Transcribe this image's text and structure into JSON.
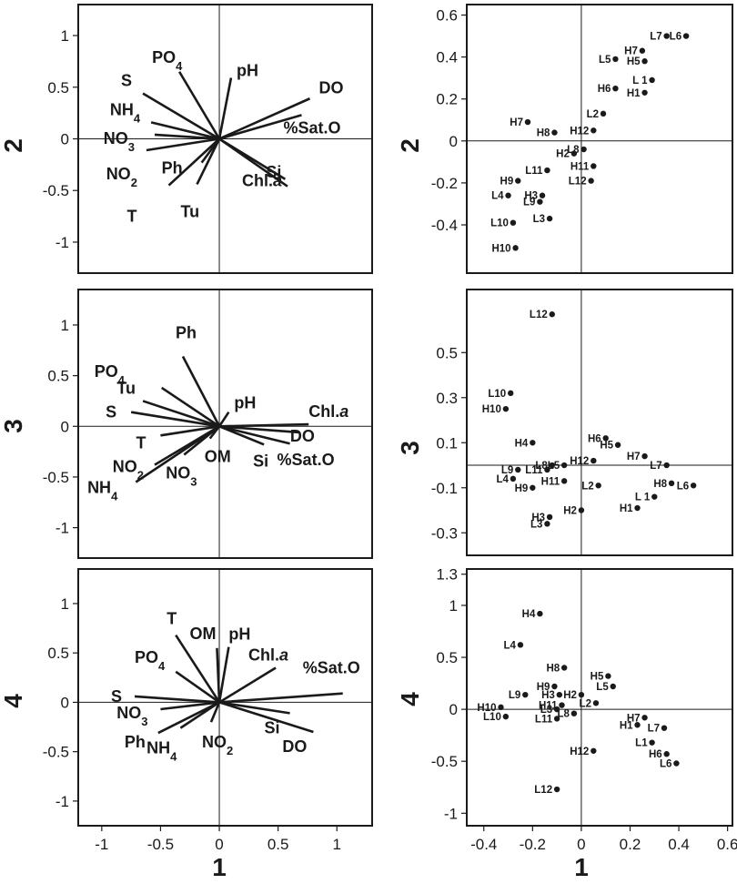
{
  "chart_data": [
    {
      "type": "biplot-loadings",
      "x_axis": "1",
      "y_axis": "2",
      "xlim": [
        -1.2,
        1.3
      ],
      "ylim": [
        -1.3,
        1.3
      ],
      "xticks": [],
      "yticks": [
        1,
        0.5,
        0,
        -0.5,
        -1
      ],
      "ytick_labels": [
        "1",
        "0.5",
        "0",
        "-0.5",
        "-1"
      ],
      "vectors": [
        {
          "label": "PO4",
          "x": -0.34,
          "y": 0.65
        },
        {
          "label": "pH",
          "x": 0.1,
          "y": 0.59
        },
        {
          "label": "DO",
          "x": 0.77,
          "y": 0.39
        },
        {
          "label": "%Sat.O",
          "x": 0.7,
          "y": 0.23
        },
        {
          "label": "S",
          "x": -0.65,
          "y": 0.44
        },
        {
          "label": "NH4",
          "x": -0.58,
          "y": 0.16
        },
        {
          "label": "NO3",
          "x": -0.55,
          "y": 0.04
        },
        {
          "label": "NO2",
          "x": -0.62,
          "y": -0.11
        },
        {
          "label": "Ph",
          "x": -0.15,
          "y": -0.23
        },
        {
          "label": "T",
          "x": -0.43,
          "y": -0.45
        },
        {
          "label": "Tu",
          "x": -0.19,
          "y": -0.44
        },
        {
          "label": "Si",
          "x": 0.56,
          "y": -0.39
        },
        {
          "label": "Chl.a",
          "x": 0.58,
          "y": -0.46
        }
      ]
    },
    {
      "type": "scatter",
      "x_axis": "1",
      "y_axis": "2",
      "xlim": [
        -0.47,
        0.62
      ],
      "ylim": [
        -0.63,
        0.65
      ],
      "xticks": [],
      "yticks": [
        0.6,
        0.4,
        0.2,
        0,
        -0.2,
        -0.4
      ],
      "ytick_labels": [
        "0.6",
        "0.4",
        "0.2",
        "0",
        "-0.2",
        "-0.4"
      ],
      "points": [
        {
          "label": "L7",
          "x": 0.35,
          "y": 0.5
        },
        {
          "label": "L6",
          "x": 0.43,
          "y": 0.5
        },
        {
          "label": "H7",
          "x": 0.25,
          "y": 0.43
        },
        {
          "label": "L5",
          "x": 0.14,
          "y": 0.39
        },
        {
          "label": "H5",
          "x": 0.26,
          "y": 0.38
        },
        {
          "label": "L 1",
          "x": 0.29,
          "y": 0.29
        },
        {
          "label": "H6",
          "x": 0.14,
          "y": 0.25
        },
        {
          "label": "H1",
          "x": 0.26,
          "y": 0.23
        },
        {
          "label": "L2",
          "x": 0.09,
          "y": 0.13
        },
        {
          "label": "H7",
          "x": -0.22,
          "y": 0.09
        },
        {
          "label": "H8",
          "x": -0.11,
          "y": 0.04
        },
        {
          "label": "H12",
          "x": 0.05,
          "y": 0.05
        },
        {
          "label": "L8",
          "x": 0.01,
          "y": -0.04
        },
        {
          "label": "H2",
          "x": -0.03,
          "y": -0.06
        },
        {
          "label": "H11",
          "x": 0.05,
          "y": -0.12
        },
        {
          "label": "L11",
          "x": -0.14,
          "y": -0.14
        },
        {
          "label": "L12",
          "x": 0.04,
          "y": -0.19
        },
        {
          "label": "H9",
          "x": -0.26,
          "y": -0.19
        },
        {
          "label": "L4",
          "x": -0.3,
          "y": -0.26
        },
        {
          "label": "H3",
          "x": -0.16,
          "y": -0.26
        },
        {
          "label": "L9",
          "x": -0.17,
          "y": -0.29
        },
        {
          "label": "L10",
          "x": -0.28,
          "y": -0.39
        },
        {
          "label": "L3",
          "x": -0.13,
          "y": -0.37
        },
        {
          "label": "H10",
          "x": -0.27,
          "y": -0.51
        }
      ]
    },
    {
      "type": "biplot-loadings",
      "x_axis": "1",
      "y_axis": "3",
      "xlim": [
        -1.2,
        1.3
      ],
      "ylim": [
        -1.3,
        1.35
      ],
      "xticks": [],
      "yticks": [
        1,
        0.5,
        0,
        -0.5,
        -1
      ],
      "ytick_labels": [
        "1",
        "0.5",
        "0",
        "-0.5",
        "-1"
      ],
      "vectors": [
        {
          "label": "PO4",
          "x": -0.49,
          "y": 0.38
        },
        {
          "label": "Ph",
          "x": -0.31,
          "y": 0.69
        },
        {
          "label": "Tu",
          "x": -0.65,
          "y": 0.25
        },
        {
          "label": "S",
          "x": -0.75,
          "y": 0.14
        },
        {
          "label": "pH",
          "x": 0.08,
          "y": 0.14
        },
        {
          "label": "Chl.a",
          "x": 0.76,
          "y": 0.02
        },
        {
          "label": "DO",
          "x": 0.68,
          "y": -0.06
        },
        {
          "label": "%Sat.O",
          "x": 0.6,
          "y": -0.17
        },
        {
          "label": "T",
          "x": -0.5,
          "y": -0.09
        },
        {
          "label": "NO2",
          "x": -0.55,
          "y": -0.38
        },
        {
          "label": "NO3",
          "x": -0.3,
          "y": -0.28
        },
        {
          "label": "NH4",
          "x": -0.71,
          "y": -0.55
        },
        {
          "label": "OM",
          "x": -0.08,
          "y": -0.12
        },
        {
          "label": "Si",
          "x": 0.38,
          "y": -0.18
        }
      ]
    },
    {
      "type": "scatter",
      "x_axis": "1",
      "y_axis": "3",
      "xlim": [
        -0.47,
        0.62
      ],
      "ylim": [
        -0.4,
        0.78
      ],
      "xticks": [],
      "yticks": [
        0.5,
        0.3,
        0.1,
        -0.1,
        -0.3
      ],
      "ytick_labels": [
        "0.5",
        "0.3",
        "0.1",
        "-0.1",
        "-0.3"
      ],
      "points": [
        {
          "label": "L12",
          "x": -0.12,
          "y": 0.67
        },
        {
          "label": "L10",
          "x": -0.29,
          "y": 0.32
        },
        {
          "label": "H10",
          "x": -0.31,
          "y": 0.25
        },
        {
          "label": "H4",
          "x": -0.2,
          "y": 0.1
        },
        {
          "label": "H6",
          "x": 0.1,
          "y": 0.12
        },
        {
          "label": "H5",
          "x": 0.15,
          "y": 0.09
        },
        {
          "label": "H7",
          "x": 0.26,
          "y": 0.04
        },
        {
          "label": "H12",
          "x": 0.05,
          "y": 0.02
        },
        {
          "label": "L7",
          "x": 0.35,
          "y": 0.0
        },
        {
          "label": "L9",
          "x": -0.26,
          "y": -0.02
        },
        {
          "label": "L8",
          "x": -0.12,
          "y": 0.0
        },
        {
          "label": "L5",
          "x": -0.07,
          "y": 0.0
        },
        {
          "label": "L4",
          "x": -0.28,
          "y": -0.06
        },
        {
          "label": "L11",
          "x": -0.14,
          "y": -0.02
        },
        {
          "label": "H9",
          "x": -0.2,
          "y": -0.1
        },
        {
          "label": "H11",
          "x": -0.07,
          "y": -0.07
        },
        {
          "label": "L2",
          "x": 0.07,
          "y": -0.09
        },
        {
          "label": "H8",
          "x": 0.37,
          "y": -0.08
        },
        {
          "label": "L6",
          "x": 0.46,
          "y": -0.09
        },
        {
          "label": "L 1",
          "x": 0.3,
          "y": -0.14
        },
        {
          "label": "H3",
          "x": -0.13,
          "y": -0.23
        },
        {
          "label": "H2",
          "x": 0.0,
          "y": -0.2
        },
        {
          "label": "L3",
          "x": -0.14,
          "y": -0.26
        },
        {
          "label": "H1",
          "x": 0.23,
          "y": -0.19
        }
      ]
    },
    {
      "type": "biplot-loadings",
      "x_axis": "1",
      "y_axis": "4",
      "xlim": [
        -1.2,
        1.3
      ],
      "ylim": [
        -1.25,
        1.35
      ],
      "xticks": [
        -1,
        -0.5,
        0,
        0.5,
        1
      ],
      "xtick_labels": [
        "-1",
        "-0.5",
        "0",
        "0.5",
        "1"
      ],
      "yticks": [
        1,
        0.5,
        0,
        -0.5,
        -1
      ],
      "ytick_labels": [
        "1",
        "0.5",
        "0",
        "-0.5",
        "-1"
      ],
      "vectors": [
        {
          "label": "T",
          "x": -0.37,
          "y": 0.68
        },
        {
          "label": "OM",
          "x": -0.02,
          "y": 0.55
        },
        {
          "label": "pH",
          "x": 0.08,
          "y": 0.56
        },
        {
          "label": "Chl.a",
          "x": 0.48,
          "y": 0.35
        },
        {
          "label": "%Sat.O",
          "x": 1.05,
          "y": 0.09
        },
        {
          "label": "PO4",
          "x": -0.37,
          "y": 0.31
        },
        {
          "label": "S",
          "x": -0.72,
          "y": 0.06
        },
        {
          "label": "Si",
          "x": 0.6,
          "y": -0.11
        },
        {
          "label": "DO",
          "x": 0.8,
          "y": -0.3
        },
        {
          "label": "NO3",
          "x": -0.5,
          "y": -0.07
        },
        {
          "label": "Ph",
          "x": -0.52,
          "y": -0.31
        },
        {
          "label": "NH4",
          "x": -0.33,
          "y": -0.26
        },
        {
          "label": "NO2",
          "x": -0.07,
          "y": -0.2
        }
      ]
    },
    {
      "type": "scatter",
      "x_axis": "1",
      "y_axis": "4",
      "xlim": [
        -0.47,
        0.62
      ],
      "ylim": [
        -1.12,
        1.35
      ],
      "xticks": [
        -0.4,
        -0.2,
        0,
        0.2,
        0.4,
        0.6
      ],
      "xtick_labels": [
        "-0.4",
        "-0.2",
        "0",
        "0.2",
        "0.4",
        "0.6"
      ],
      "yticks": [
        1.3,
        1,
        0.5,
        0,
        -0.5,
        -1
      ],
      "ytick_labels": [
        "1.3",
        "1",
        "0.5",
        "0",
        "-0.5",
        "-1"
      ],
      "points": [
        {
          "label": "H4",
          "x": -0.17,
          "y": 0.92
        },
        {
          "label": "L4",
          "x": -0.25,
          "y": 0.62
        },
        {
          "label": "H5",
          "x": 0.11,
          "y": 0.32
        },
        {
          "label": "L5",
          "x": 0.13,
          "y": 0.22
        },
        {
          "label": "H8",
          "x": -0.07,
          "y": 0.4
        },
        {
          "label": "H9",
          "x": -0.11,
          "y": 0.22
        },
        {
          "label": "H3",
          "x": -0.09,
          "y": 0.14
        },
        {
          "label": "L9",
          "x": -0.23,
          "y": 0.14
        },
        {
          "label": "H2",
          "x": 0.0,
          "y": 0.14
        },
        {
          "label": "L2",
          "x": 0.06,
          "y": 0.06
        },
        {
          "label": "H10",
          "x": -0.33,
          "y": 0.02
        },
        {
          "label": "L10",
          "x": -0.31,
          "y": -0.07
        },
        {
          "label": "L3",
          "x": -0.1,
          "y": 0.0
        },
        {
          "label": "H11",
          "x": -0.08,
          "y": 0.04
        },
        {
          "label": "L11",
          "x": -0.1,
          "y": -0.09
        },
        {
          "label": "L8",
          "x": -0.03,
          "y": -0.04
        },
        {
          "label": "H7",
          "x": 0.26,
          "y": -0.08
        },
        {
          "label": "H1",
          "x": 0.23,
          "y": -0.15
        },
        {
          "label": "L7",
          "x": 0.34,
          "y": -0.18
        },
        {
          "label": "L1",
          "x": 0.29,
          "y": -0.32
        },
        {
          "label": "H6",
          "x": 0.35,
          "y": -0.43
        },
        {
          "label": "L6",
          "x": 0.39,
          "y": -0.52
        },
        {
          "label": "H12",
          "x": 0.05,
          "y": -0.4
        },
        {
          "label": "L12",
          "x": -0.1,
          "y": -0.77
        }
      ]
    }
  ],
  "row_labels": [
    "2",
    "3",
    "4"
  ],
  "column_labels": [
    "1",
    "1"
  ]
}
